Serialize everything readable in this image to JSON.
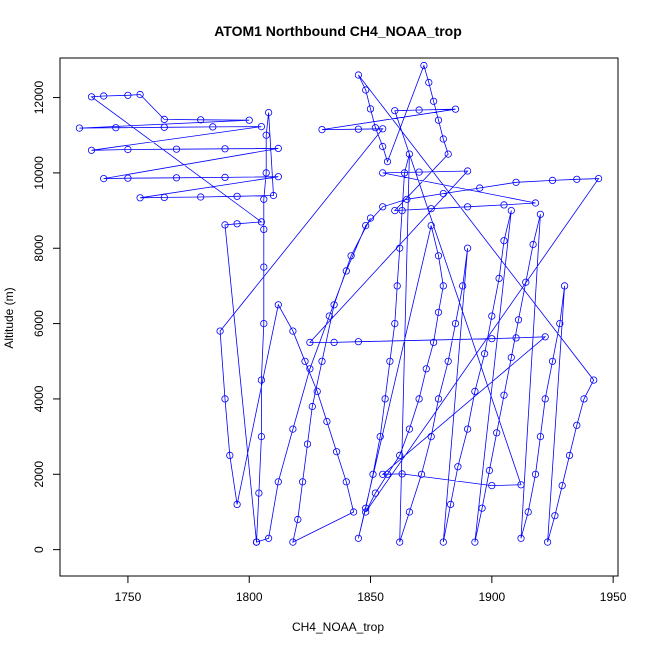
{
  "chart_data": {
    "type": "scatter",
    "title": "ATOM1 Northbound CH4_NOAA_trop",
    "xlabel": "CH4_NOAA_trop",
    "ylabel": "Altitude (m)",
    "xlim": [
      1722,
      1952
    ],
    "ylim": [
      -700,
      13050
    ],
    "x_ticks": [
      1750,
      1800,
      1850,
      1900,
      1950
    ],
    "y_ticks": [
      0,
      2000,
      4000,
      6000,
      8000,
      10000,
      12000
    ],
    "grid": false,
    "legend": "none",
    "marker": "open-circle",
    "connected": true,
    "color": "#0000ff",
    "series": [
      {
        "points": [
          [
            1803,
            200
          ],
          [
            1804,
            1500
          ],
          [
            1805,
            3000
          ],
          [
            1805,
            4500
          ],
          [
            1806,
            6000
          ],
          [
            1806,
            7500
          ],
          [
            1806,
            8500
          ],
          [
            1806,
            9300
          ],
          [
            1807,
            10000
          ],
          [
            1807,
            11000
          ],
          [
            1808,
            11600
          ],
          [
            1810,
            9400
          ],
          [
            1795,
            9380
          ],
          [
            1780,
            9360
          ],
          [
            1765,
            9350
          ],
          [
            1755,
            9340
          ],
          [
            1812,
            9900
          ],
          [
            1790,
            9880
          ],
          [
            1770,
            9870
          ],
          [
            1750,
            9860
          ],
          [
            1740,
            9850
          ],
          [
            1812,
            10650
          ],
          [
            1790,
            10640
          ],
          [
            1770,
            10630
          ],
          [
            1750,
            10620
          ],
          [
            1735,
            10600
          ],
          [
            1805,
            11230
          ],
          [
            1785,
            11220
          ],
          [
            1765,
            11210
          ],
          [
            1745,
            11200
          ],
          [
            1730,
            11190
          ],
          [
            1800,
            11400
          ],
          [
            1780,
            11410
          ],
          [
            1765,
            11420
          ],
          [
            1755,
            12080
          ],
          [
            1750,
            12060
          ],
          [
            1740,
            12040
          ],
          [
            1735,
            12020
          ],
          [
            1805,
            8700
          ],
          [
            1795,
            8650
          ],
          [
            1790,
            8620
          ],
          [
            1803,
            200
          ],
          [
            1808,
            300
          ],
          [
            1812,
            1800
          ],
          [
            1818,
            3200
          ],
          [
            1825,
            4800
          ],
          [
            1833,
            6200
          ],
          [
            1840,
            7400
          ],
          [
            1848,
            8600
          ],
          [
            1855,
            9100
          ],
          [
            1865,
            9300
          ],
          [
            1880,
            9450
          ],
          [
            1895,
            9600
          ],
          [
            1910,
            9750
          ],
          [
            1925,
            9800
          ],
          [
            1935,
            9830
          ],
          [
            1944,
            9850
          ],
          [
            1848,
            1000
          ],
          [
            1852,
            1500
          ],
          [
            1857,
            2000
          ],
          [
            1862,
            2500
          ],
          [
            1866,
            3200
          ],
          [
            1870,
            4000
          ],
          [
            1873,
            4800
          ],
          [
            1876,
            5500
          ],
          [
            1878,
            6300
          ],
          [
            1880,
            7000
          ],
          [
            1878,
            7800
          ],
          [
            1875,
            8600
          ],
          [
            1845,
            300
          ],
          [
            1848,
            1100
          ],
          [
            1851,
            2000
          ],
          [
            1854,
            3000
          ],
          [
            1856,
            4000
          ],
          [
            1858,
            5000
          ],
          [
            1860,
            6000
          ],
          [
            1861,
            7000
          ],
          [
            1862,
            8000
          ],
          [
            1863,
            9000
          ],
          [
            1864,
            10000
          ],
          [
            1866,
            10500
          ],
          [
            1862,
            200
          ],
          [
            1866,
            1000
          ],
          [
            1871,
            2000
          ],
          [
            1875,
            3000
          ],
          [
            1878,
            4000
          ],
          [
            1882,
            5000
          ],
          [
            1885,
            6000
          ],
          [
            1888,
            7000
          ],
          [
            1890,
            8000
          ],
          [
            1880,
            200
          ],
          [
            1883,
            1200
          ],
          [
            1886,
            2200
          ],
          [
            1890,
            3200
          ],
          [
            1893,
            4200
          ],
          [
            1897,
            5200
          ],
          [
            1900,
            6200
          ],
          [
            1903,
            7200
          ],
          [
            1905,
            8200
          ],
          [
            1908,
            9000
          ],
          [
            1893,
            200
          ],
          [
            1896,
            1100
          ],
          [
            1899,
            2100
          ],
          [
            1902,
            3100
          ],
          [
            1905,
            4100
          ],
          [
            1908,
            5100
          ],
          [
            1911,
            6100
          ],
          [
            1914,
            7100
          ],
          [
            1917,
            8100
          ],
          [
            1920,
            8900
          ],
          [
            1912,
            300
          ],
          [
            1915,
            1000
          ],
          [
            1918,
            2000
          ],
          [
            1920,
            3000
          ],
          [
            1922,
            4000
          ],
          [
            1925,
            5000
          ],
          [
            1928,
            6000
          ],
          [
            1930,
            7000
          ],
          [
            1923,
            200
          ],
          [
            1926,
            900
          ],
          [
            1929,
            1700
          ],
          [
            1932,
            2500
          ],
          [
            1935,
            3300
          ],
          [
            1938,
            4000
          ],
          [
            1942,
            4500
          ],
          [
            1845,
            12600
          ],
          [
            1848,
            12200
          ],
          [
            1850,
            11700
          ],
          [
            1852,
            11200
          ],
          [
            1855,
            10700
          ],
          [
            1857,
            10300
          ],
          [
            1872,
            12850
          ],
          [
            1874,
            12400
          ],
          [
            1876,
            11900
          ],
          [
            1878,
            11400
          ],
          [
            1880,
            10900
          ],
          [
            1882,
            10500
          ],
          [
            1860,
            9000
          ],
          [
            1875,
            9050
          ],
          [
            1890,
            9100
          ],
          [
            1905,
            9150
          ],
          [
            1918,
            9200
          ],
          [
            1855,
            10000
          ],
          [
            1870,
            10020
          ],
          [
            1890,
            10050
          ],
          [
            1825,
            5500
          ],
          [
            1835,
            5500
          ],
          [
            1845,
            5520
          ],
          [
            1900,
            5600
          ],
          [
            1910,
            5620
          ],
          [
            1922,
            5650
          ],
          [
            1855,
            2000
          ],
          [
            1863,
            2010
          ],
          [
            1900,
            1700
          ],
          [
            1912,
            1720
          ],
          [
            1860,
            11650
          ],
          [
            1870,
            11670
          ],
          [
            1885,
            11690
          ],
          [
            1830,
            11150
          ],
          [
            1845,
            11160
          ],
          [
            1855,
            11170
          ],
          [
            1788,
            5800
          ],
          [
            1790,
            4000
          ],
          [
            1792,
            2500
          ],
          [
            1795,
            1200
          ],
          [
            1812,
            6500
          ],
          [
            1818,
            5800
          ],
          [
            1823,
            5000
          ],
          [
            1828,
            4200
          ],
          [
            1832,
            3400
          ],
          [
            1836,
            2600
          ],
          [
            1840,
            1800
          ],
          [
            1843,
            1000
          ],
          [
            1818,
            200
          ],
          [
            1820,
            800
          ],
          [
            1822,
            1800
          ],
          [
            1824,
            2800
          ],
          [
            1826,
            3800
          ],
          [
            1830,
            5000
          ],
          [
            1835,
            6500
          ],
          [
            1842,
            7800
          ],
          [
            1850,
            8800
          ]
        ]
      }
    ]
  }
}
